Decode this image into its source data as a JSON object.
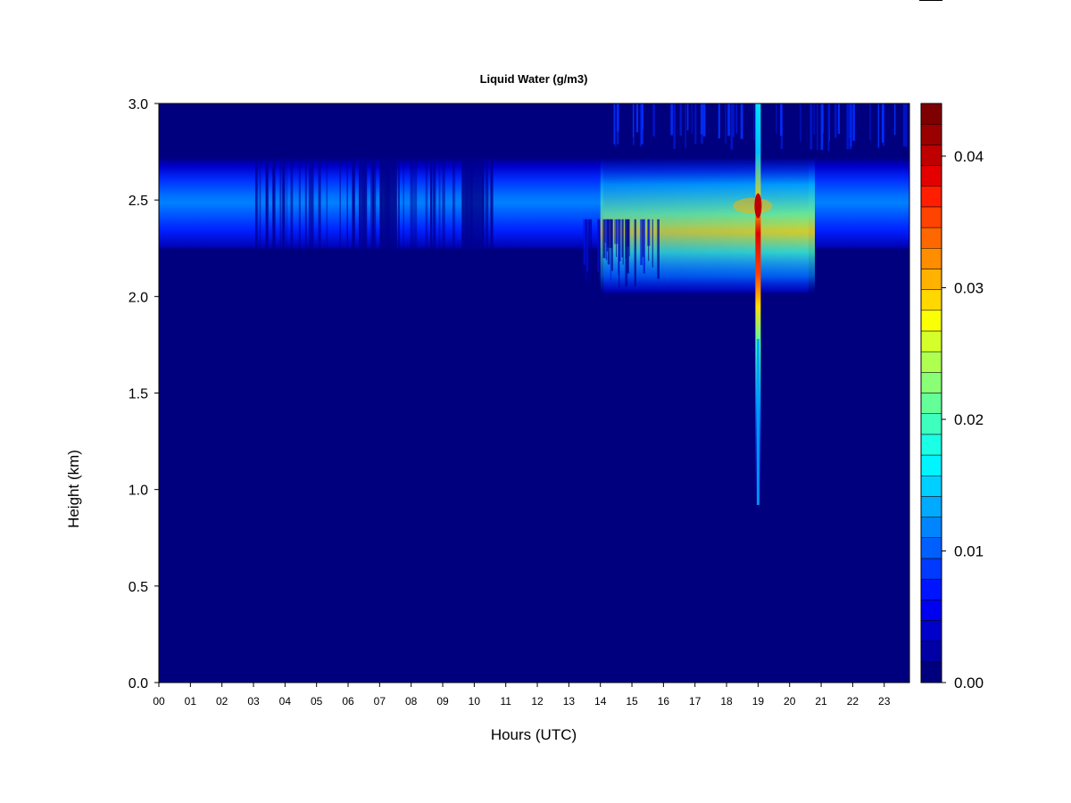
{
  "chart_data": {
    "type": "heatmap",
    "title": "Liquid Water (g/m3)",
    "xlabel": "Hours (UTC)",
    "ylabel": "Height (km)",
    "x_ticks": [
      "00",
      "01",
      "02",
      "03",
      "04",
      "05",
      "06",
      "07",
      "08",
      "09",
      "10",
      "11",
      "12",
      "13",
      "14",
      "15",
      "16",
      "17",
      "18",
      "19",
      "20",
      "21",
      "22",
      "23"
    ],
    "y_ticks": [
      "0.0",
      "0.5",
      "1.0",
      "1.5",
      "2.0",
      "2.5",
      "3.0"
    ],
    "xlim": [
      0,
      23.8
    ],
    "ylim": [
      0.0,
      3.0
    ],
    "colorbar": {
      "range": [
        0.0,
        0.044
      ],
      "ticks": [
        "0.00",
        "0.01",
        "0.02",
        "0.03",
        "0.04"
      ],
      "colors": [
        "#00007F",
        "#0000A5",
        "#0000CB",
        "#0000F1",
        "#0015FF",
        "#003AFF",
        "#0060FF",
        "#0085FF",
        "#00AAFF",
        "#00D0FF",
        "#00F5FF",
        "#1AFFE5",
        "#3FFFBF",
        "#65FF9A",
        "#8AFF75",
        "#AFFF50",
        "#D5FF2A",
        "#FAFF05",
        "#FFD800",
        "#FFB200",
        "#FF8D00",
        "#FF6800",
        "#FF4300",
        "#FF1E00",
        "#E50000",
        "#BF0000",
        "#9A0000",
        "#7F0000"
      ]
    },
    "features": [
      {
        "name": "cloud layer",
        "height_km": [
          2.25,
          2.72
        ],
        "peak_height_km": 2.5,
        "hours": [
          0,
          23.8
        ],
        "value_range": [
          0.004,
          0.03
        ]
      },
      {
        "name": "peak",
        "hour": 19.0,
        "height_km": 2.47,
        "value": 0.044
      },
      {
        "name": "vertical streak",
        "hour": 19.0,
        "height_km": [
          0.9,
          3.0
        ],
        "value_range": [
          0.008,
          0.03
        ]
      }
    ]
  }
}
